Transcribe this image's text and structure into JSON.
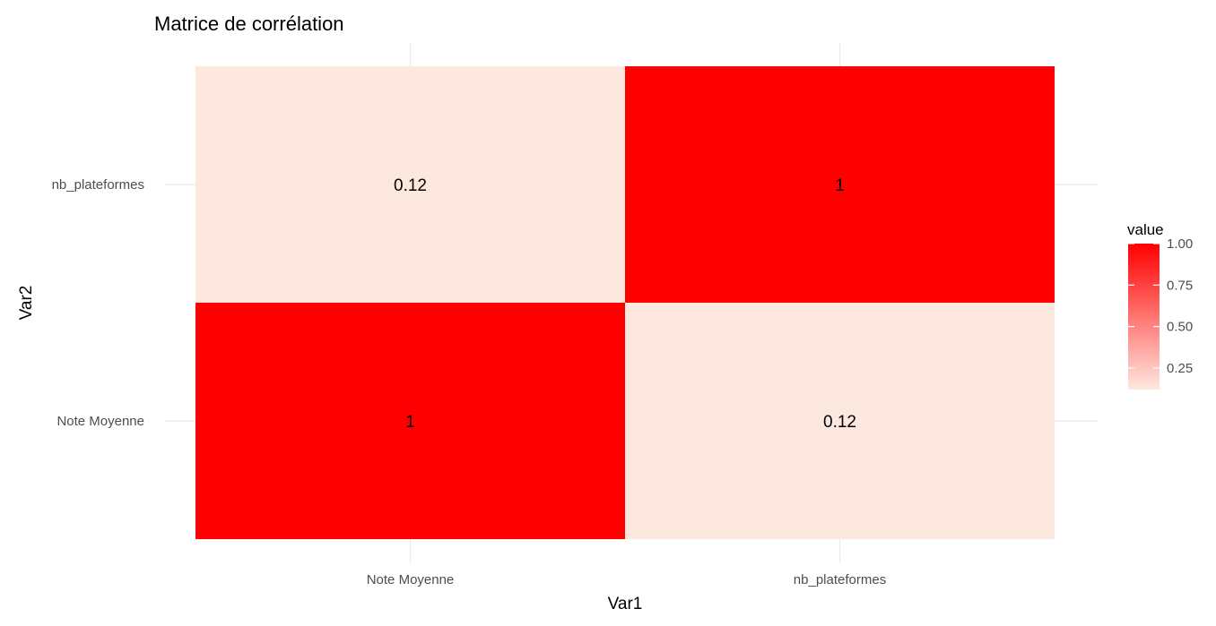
{
  "chart_data": {
    "type": "heatmap",
    "title": "Matrice de corrélation",
    "xlabel": "Var1",
    "ylabel": "Var2",
    "x_categories": [
      "Note Moyenne",
      "nb_plateformes"
    ],
    "y_categories": [
      "Note Moyenne",
      "nb_plateformes"
    ],
    "cells": [
      {
        "x": "Note Moyenne",
        "y": "Note Moyenne",
        "value": 1,
        "label": "1"
      },
      {
        "x": "nb_plateformes",
        "y": "Note Moyenne",
        "value": 0.12,
        "label": "0.12"
      },
      {
        "x": "Note Moyenne",
        "y": "nb_plateformes",
        "value": 0.12,
        "label": "0.12"
      },
      {
        "x": "nb_plateformes",
        "y": "nb_plateformes",
        "value": 1,
        "label": "1"
      }
    ],
    "grid": true,
    "legend": {
      "title": "value",
      "position": "right",
      "range": [
        0.12,
        1
      ],
      "ticks": [
        1.0,
        0.75,
        0.5,
        0.25
      ],
      "tick_labels": [
        "1.00",
        "0.75",
        "0.50",
        "0.25"
      ],
      "low_color": "#fde8e0",
      "high_color": "#ff0000"
    }
  }
}
